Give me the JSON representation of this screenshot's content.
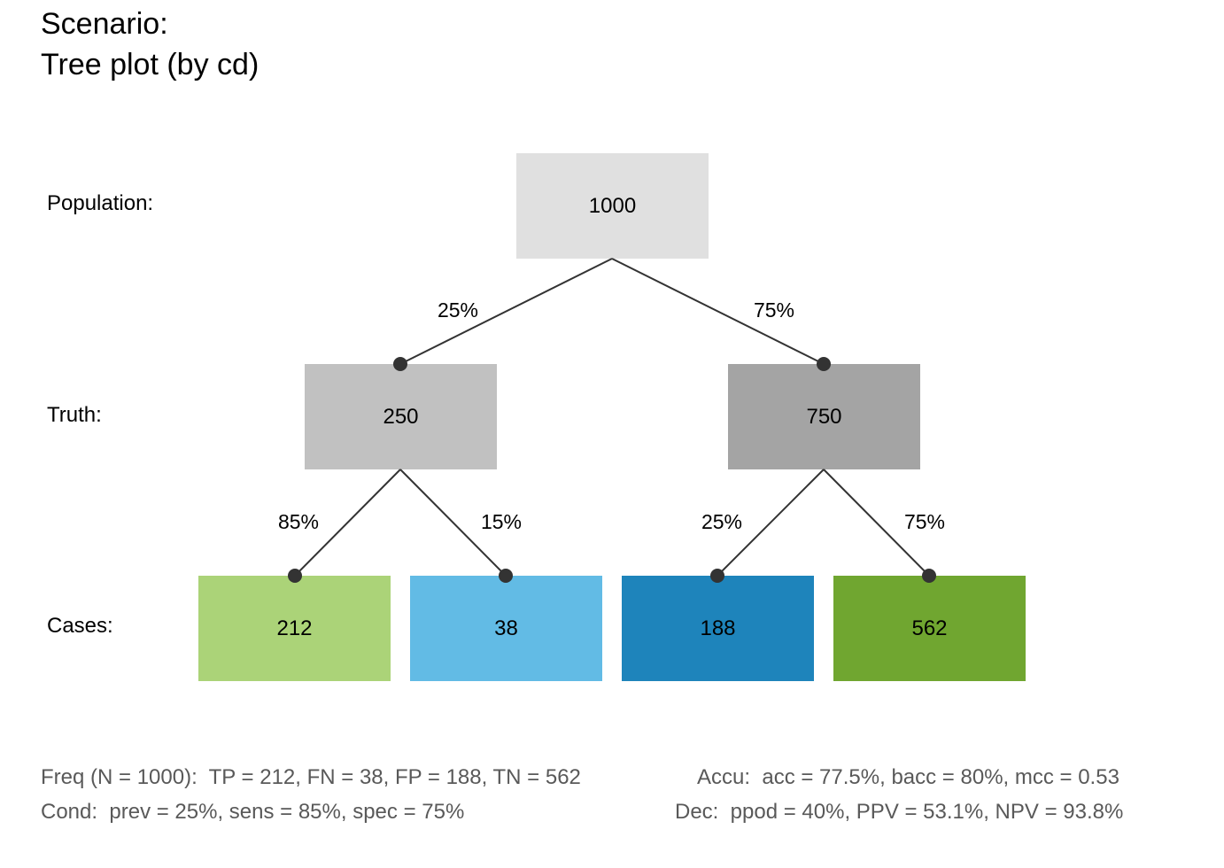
{
  "title": {
    "line1": "Scenario:",
    "line2": "Tree plot (by cd)"
  },
  "row_labels": {
    "population": "Population:",
    "truth": "Truth:",
    "cases": "Cases:"
  },
  "nodes": {
    "population": {
      "value": "1000",
      "color": "#e0e0e0"
    },
    "cond_true": {
      "value": "250",
      "color": "#c1c1c1"
    },
    "cond_false": {
      "value": "750",
      "color": "#a4a4a4"
    },
    "tp": {
      "value": "212",
      "color": "#abd378"
    },
    "fn": {
      "value": "38",
      "color": "#62bbe5"
    },
    "fp": {
      "value": "188",
      "color": "#1e84bb"
    },
    "tn": {
      "value": "562",
      "color": "#70a630"
    }
  },
  "edges": {
    "pop_to_true": "25%",
    "pop_to_false": "75%",
    "true_to_tp": "85%",
    "true_to_fn": "15%",
    "false_to_fp": "25%",
    "false_to_tn": "75%"
  },
  "footer": {
    "freq": "Freq (N = 1000):  TP = 212, FN = 38, FP = 188, TN = 562",
    "accu": "Accu:  acc = 77.5%, bacc = 80%, mcc = 0.53",
    "cond": "Cond:  prev = 25%, sens = 85%, spec = 75%",
    "dec": "Dec:  ppod = 40%, PPV = 53.1%, NPV = 93.8%"
  },
  "colors": {
    "edge": "#333333",
    "footer_text": "#595959"
  }
}
